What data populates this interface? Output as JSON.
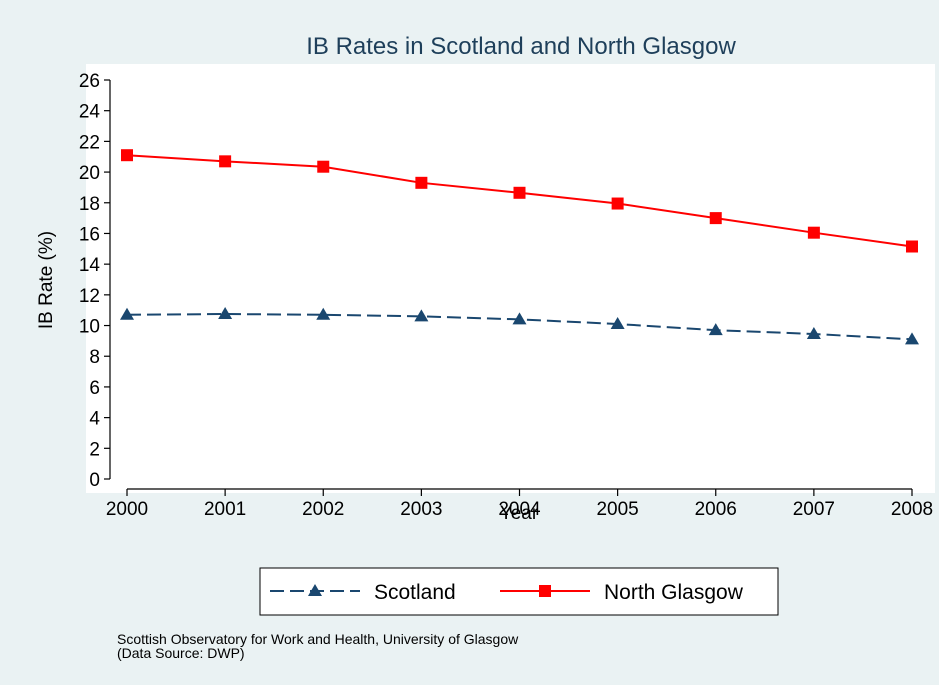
{
  "chart_data": {
    "type": "line",
    "title": "IB Rates in Scotland and North Glasgow",
    "xlabel": "Year",
    "ylabel": "IB Rate (%)",
    "x": [
      2000,
      2001,
      2002,
      2003,
      2004,
      2005,
      2006,
      2007,
      2008
    ],
    "xlim": [
      2000,
      2008
    ],
    "ylim": [
      0,
      26
    ],
    "yticks": [
      0,
      2,
      4,
      6,
      8,
      10,
      12,
      14,
      16,
      18,
      20,
      22,
      24,
      26
    ],
    "grid": false,
    "legend_position": "bottom",
    "series": [
      {
        "name": "Scotland",
        "values": [
          10.7,
          10.75,
          10.7,
          10.6,
          10.4,
          10.1,
          9.7,
          9.45,
          9.1
        ],
        "color": "#1a476f",
        "line_style": "dashed",
        "marker": "triangle"
      },
      {
        "name": "North Glasgow",
        "values": [
          21.1,
          20.7,
          20.35,
          19.3,
          18.65,
          17.95,
          17.0,
          16.05,
          15.15
        ],
        "color": "#ff0000",
        "line_style": "solid",
        "marker": "square"
      }
    ]
  },
  "note": {
    "line1": "Scottish Observatory for Work and Health, University of Glasgow",
    "line2": "(Data Source: DWP)"
  },
  "colors": {
    "background": "#eaf2f3",
    "plot_background": "#ffffff",
    "title": "#1e3f5a"
  }
}
